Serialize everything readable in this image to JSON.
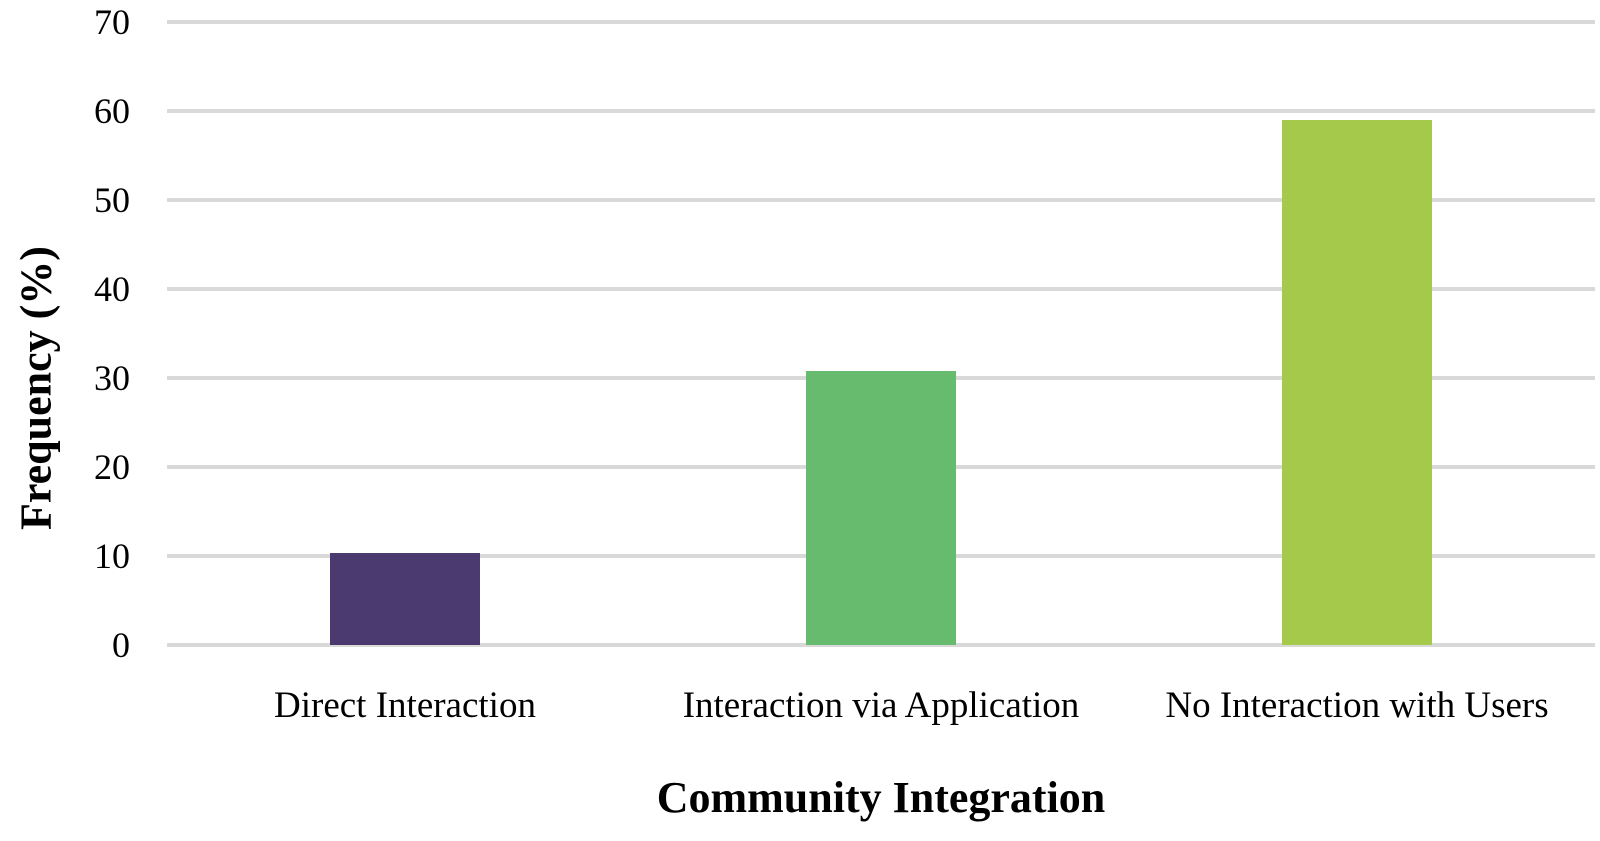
{
  "chart_data": {
    "type": "bar",
    "title": "",
    "xlabel": "Community Integration",
    "ylabel": "Frequency (%)",
    "categories": [
      "Direct Interaction",
      "Interaction via Application",
      "No Interaction with Users"
    ],
    "values": [
      10.3,
      30.8,
      59.0
    ],
    "bar_colors": [
      "#4A3A70",
      "#66BB6E",
      "#A4C94B"
    ],
    "ylim": [
      0,
      70
    ],
    "yticks": [
      0,
      10,
      20,
      30,
      40,
      50,
      60,
      70
    ],
    "grid": true,
    "gridline_color": "#D9D9D9",
    "legend_position": "none",
    "text_color": "#000000",
    "background_color": "#FFFFFF"
  }
}
